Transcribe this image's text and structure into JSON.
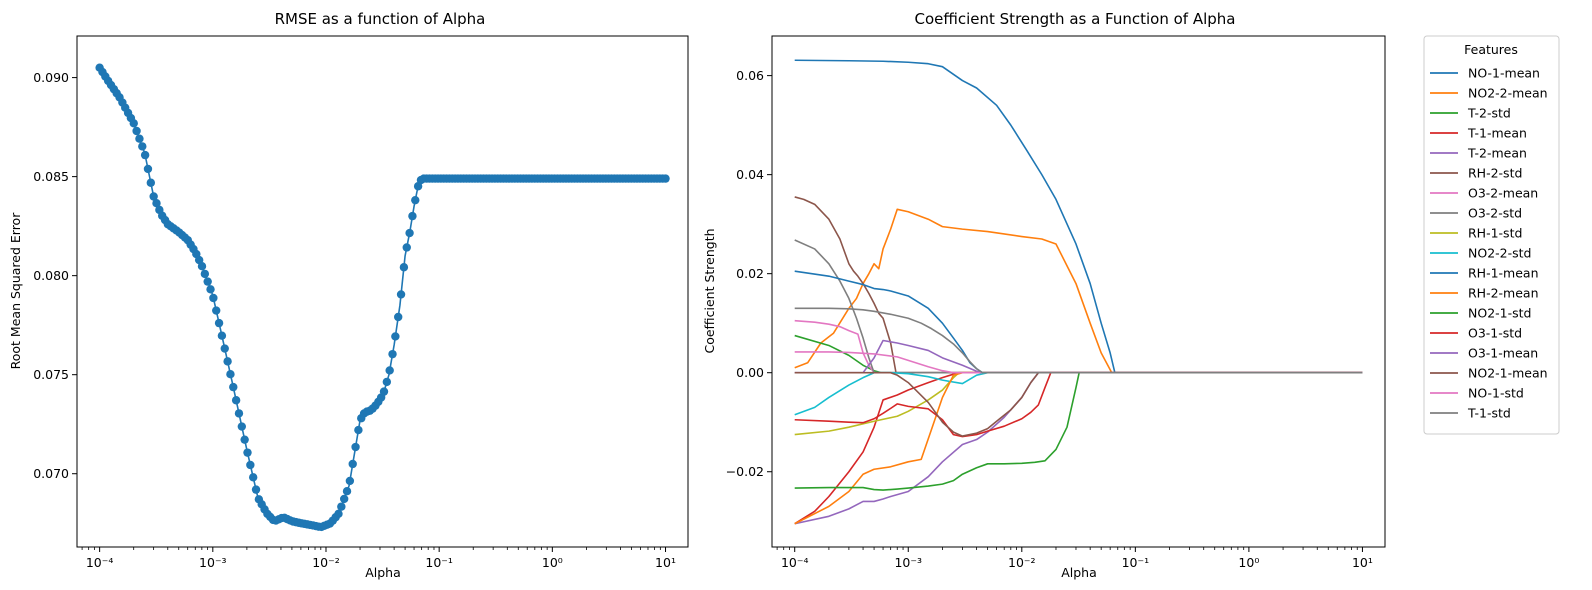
{
  "chart_data": [
    {
      "type": "line",
      "title": "RMSE as a function of Alpha",
      "xlabel": "Alpha",
      "ylabel": "Root Mean Squared Error",
      "xscale": "log",
      "xlim": [
        6.31e-05,
        15.8
      ],
      "ylim": [
        0.0663,
        0.0921
      ],
      "x_ticks": [
        "10⁻⁴",
        "10⁻³",
        "10⁻²",
        "10⁻¹",
        "10⁰",
        "10¹"
      ],
      "y_ticks": [
        "0.070",
        "0.075",
        "0.080",
        "0.085",
        "0.090"
      ],
      "y_tick_values": [
        0.07,
        0.075,
        0.08,
        0.085,
        0.09
      ],
      "grid": false,
      "marker": "circle",
      "color": "#1f77b4",
      "series": [
        {
          "x": [
            0.0001,
            0.00012,
            0.00015,
            0.0002,
            0.00025,
            0.0003,
            0.00035,
            0.0004,
            0.0005,
            0.0006,
            0.0007,
            0.0008,
            0.001,
            0.0012,
            0.0015,
            0.002,
            0.0025,
            0.003,
            0.0035,
            0.0042,
            0.005,
            0.006,
            0.0075,
            0.009,
            0.011,
            0.013,
            0.016,
            0.02,
            0.022,
            0.025,
            0.028,
            0.032,
            0.036,
            0.04,
            0.045,
            0.05,
            0.055,
            0.06,
            0.065,
            0.07,
            0.1,
            0.3,
            1,
            3,
            10
          ],
          "y": [
            0.0905,
            0.0898,
            0.089,
            0.0877,
            0.0862,
            0.084,
            0.0831,
            0.0826,
            0.0822,
            0.0818,
            0.0812,
            0.0805,
            0.079,
            0.077,
            0.0745,
            0.0712,
            0.0688,
            0.068,
            0.0676,
            0.0678,
            0.0676,
            0.0675,
            0.0674,
            0.0673,
            0.0675,
            0.068,
            0.0694,
            0.0727,
            0.0731,
            0.0732,
            0.0735,
            0.074,
            0.075,
            0.0765,
            0.0785,
            0.081,
            0.0822,
            0.0835,
            0.0845,
            0.0849,
            0.0849,
            0.0849,
            0.0849,
            0.0849,
            0.0849
          ]
        }
      ]
    },
    {
      "type": "line",
      "title": "Coefficient Strength as a Function of Alpha",
      "xlabel": "Alpha",
      "ylabel": "Coefficient Strength",
      "xscale": "log",
      "xlim": [
        6.31e-05,
        15.8
      ],
      "ylim": [
        -0.0352,
        0.068
      ],
      "x_ticks": [
        "10⁻⁴",
        "10⁻³",
        "10⁻²",
        "10⁻¹",
        "10⁰",
        "10¹"
      ],
      "y_ticks": [
        "−0.02",
        "0.00",
        "0.02",
        "0.04",
        "0.06"
      ],
      "y_tick_values": [
        -0.02,
        0.0,
        0.02,
        0.04,
        0.06
      ],
      "grid": false,
      "legend": {
        "title": "Features",
        "placement": "outside-right"
      },
      "series": [
        {
          "name": "NO-1-mean",
          "color": "#1f77b4",
          "x": [
            0.0001,
            0.0003,
            0.0006,
            0.001,
            0.0015,
            0.002,
            0.003,
            0.004,
            0.006,
            0.008,
            0.011,
            0.015,
            0.02,
            0.03,
            0.04,
            0.05,
            0.06,
            0.066,
            10
          ],
          "y": [
            0.0631,
            0.063,
            0.0629,
            0.0627,
            0.0624,
            0.0618,
            0.059,
            0.0575,
            0.054,
            0.05,
            0.045,
            0.04,
            0.035,
            0.026,
            0.018,
            0.01,
            0.004,
            0.0,
            0.0
          ]
        },
        {
          "name": "NO2-2-mean",
          "color": "#ff7f0e",
          "x": [
            0.0001,
            0.00013,
            0.00017,
            0.00022,
            0.0003,
            0.00035,
            0.0004,
            0.00045,
            0.0005,
            0.00055,
            0.0006,
            0.0007,
            0.0008,
            0.001,
            0.0015,
            0.002,
            0.003,
            0.005,
            0.01,
            0.015,
            0.02,
            0.03,
            0.04,
            0.05,
            0.062,
            10
          ],
          "y": [
            0.001,
            0.002,
            0.006,
            0.008,
            0.013,
            0.015,
            0.018,
            0.02,
            0.022,
            0.021,
            0.025,
            0.029,
            0.033,
            0.0325,
            0.031,
            0.0295,
            0.029,
            0.0285,
            0.0275,
            0.027,
            0.026,
            0.018,
            0.01,
            0.004,
            0.0,
            0.0
          ]
        },
        {
          "name": "T-2-std",
          "color": "#2ca02c",
          "x": [
            0.0001,
            0.0002,
            0.0003,
            0.0004,
            0.0005,
            0.00058,
            10
          ],
          "y": [
            0.0075,
            0.0055,
            0.0035,
            0.0015,
            0.0004,
            0.0,
            0.0
          ]
        },
        {
          "name": "T-1-mean",
          "color": "#d62728",
          "x": [
            0.0001,
            0.00015,
            0.0002,
            0.0003,
            0.0004,
            0.0005,
            0.0006,
            0.0008,
            0.001,
            0.0015,
            0.002,
            0.0025,
            0.0028,
            10
          ],
          "y": [
            -0.0305,
            -0.028,
            -0.025,
            -0.02,
            -0.016,
            -0.011,
            -0.0055,
            -0.0045,
            -0.0035,
            -0.002,
            -0.001,
            -0.0003,
            0.0,
            0.0
          ]
        },
        {
          "name": "T-2-mean",
          "color": "#9467bd",
          "x": [
            0.0001,
            0.0002,
            0.0003,
            0.0004,
            0.0005,
            0.0006,
            0.0007,
            0.001,
            0.0015,
            0.002,
            0.003,
            0.004,
            0.005,
            0.007,
            0.01,
            0.012,
            0.014,
            10
          ],
          "y": [
            -0.0305,
            -0.029,
            -0.0275,
            -0.026,
            -0.026,
            -0.0255,
            -0.025,
            -0.024,
            -0.021,
            -0.018,
            -0.0145,
            -0.0135,
            -0.012,
            -0.009,
            -0.005,
            -0.002,
            0.0,
            0.0
          ]
        },
        {
          "name": "RH-2-std",
          "color": "#8c564b",
          "x": [
            0.0001,
            0.00012,
            0.00015,
            0.0002,
            0.00025,
            0.0003,
            0.00033,
            0.00036,
            0.0004,
            0.00045,
            0.0005,
            0.00055,
            0.0006,
            0.0007,
            0.00078,
            10
          ],
          "y": [
            0.0355,
            0.035,
            0.034,
            0.031,
            0.027,
            0.022,
            0.0205,
            0.0195,
            0.018,
            0.016,
            0.014,
            0.012,
            0.011,
            0.006,
            0.0,
            0.0
          ]
        },
        {
          "name": "O3-2-mean",
          "color": "#e377c2",
          "x": [
            0.0001,
            0.00015,
            0.0002,
            0.00025,
            0.0003,
            0.00036,
            0.0004,
            0.00045,
            0.0005,
            10
          ],
          "y": [
            0.0105,
            0.0102,
            0.0098,
            0.0093,
            0.0085,
            0.0078,
            0.004,
            0.0015,
            0.0,
            0.0
          ]
        },
        {
          "name": "O3-2-std",
          "color": "#7f7f7f",
          "x": [
            0.0001,
            0.00015,
            0.0002,
            0.00025,
            0.0003,
            0.00035,
            0.0004,
            0.00045,
            0.0005,
            10
          ],
          "y": [
            0.0268,
            0.025,
            0.022,
            0.0185,
            0.015,
            0.011,
            0.007,
            0.003,
            0.0,
            0.0
          ]
        },
        {
          "name": "RH-1-std",
          "color": "#bcbd22",
          "x": [
            0.0001,
            0.0002,
            0.0003,
            0.0005,
            0.0008,
            0.001,
            0.0015,
            0.002,
            0.0025,
            0.0028,
            10
          ],
          "y": [
            -0.0125,
            -0.0118,
            -0.011,
            -0.0098,
            -0.0088,
            -0.0078,
            -0.0055,
            -0.0035,
            -0.001,
            0.0,
            0.0
          ]
        },
        {
          "name": "NO2-2-std",
          "color": "#17becf",
          "x": [
            0.0001,
            0.00015,
            0.0002,
            0.0003,
            0.0004,
            0.0005,
            0.0007,
            0.001,
            0.0015,
            0.002,
            0.003,
            0.004,
            0.005,
            10
          ],
          "y": [
            -0.0085,
            -0.007,
            -0.005,
            -0.0025,
            -0.001,
            0.0,
            0.0,
            -0.0002,
            -0.0008,
            -0.0015,
            -0.0022,
            -0.0005,
            0.0,
            0.0
          ]
        },
        {
          "name": "RH-1-mean",
          "color": "#1f77b4",
          "x": [
            0.0001,
            0.0002,
            0.0003,
            0.0004,
            0.0005,
            0.0006,
            0.0007,
            0.001,
            0.0015,
            0.002,
            0.0025,
            0.003,
            0.0035,
            0.004,
            0.0045,
            10
          ],
          "y": [
            0.0205,
            0.0195,
            0.0185,
            0.0178,
            0.017,
            0.0168,
            0.0165,
            0.0155,
            0.013,
            0.01,
            0.007,
            0.0045,
            0.002,
            0.0008,
            0.0,
            0.0
          ]
        },
        {
          "name": "RH-2-mean",
          "color": "#ff7f0e",
          "x": [
            0.0001,
            0.0002,
            0.0003,
            0.0004,
            0.0005,
            0.0007,
            0.001,
            0.0013,
            0.0016,
            0.002,
            0.0025,
            0.003,
            10
          ],
          "y": [
            -0.0305,
            -0.027,
            -0.024,
            -0.0205,
            -0.0195,
            -0.019,
            -0.018,
            -0.0175,
            -0.0115,
            -0.005,
            -0.0005,
            0.0,
            0.0
          ]
        },
        {
          "name": "NO2-1-std",
          "color": "#2ca02c",
          "x": [
            0.0001,
            0.0002,
            0.0003,
            0.0004,
            0.0005,
            0.0006,
            0.0008,
            0.001,
            0.0015,
            0.002,
            0.0025,
            0.003,
            0.004,
            0.005,
            0.007,
            0.01,
            0.013,
            0.016,
            0.02,
            0.025,
            0.03,
            0.032,
            10
          ],
          "y": [
            -0.0233,
            -0.0232,
            -0.0232,
            -0.0232,
            -0.0236,
            -0.0237,
            -0.0235,
            -0.0233,
            -0.0229,
            -0.0225,
            -0.0218,
            -0.0205,
            -0.0192,
            -0.0184,
            -0.0184,
            -0.0183,
            -0.0181,
            -0.0178,
            -0.0155,
            -0.011,
            -0.003,
            0.0,
            0.0
          ]
        },
        {
          "name": "O3-1-std",
          "color": "#d62728",
          "x": [
            0.0001,
            0.0002,
            0.0003,
            0.0004,
            0.0005,
            0.0006,
            0.0007,
            0.0008,
            0.001,
            0.0015,
            0.002,
            0.0025,
            0.003,
            0.004,
            0.005,
            0.007,
            0.01,
            0.012,
            0.014,
            0.016,
            0.018,
            10
          ],
          "y": [
            -0.0095,
            -0.0098,
            -0.01,
            -0.0101,
            -0.0093,
            -0.0082,
            -0.0072,
            -0.0063,
            -0.0068,
            -0.0073,
            -0.0095,
            -0.0125,
            -0.0129,
            -0.0125,
            -0.0118,
            -0.0108,
            -0.0093,
            -0.008,
            -0.0065,
            -0.003,
            0.0,
            0.0
          ]
        },
        {
          "name": "O3-1-mean",
          "color": "#9467bd",
          "x": [
            0.0001,
            0.0003,
            0.0004,
            0.0005,
            0.0006,
            0.0008,
            0.001,
            0.0015,
            0.002,
            0.003,
            0.004,
            0.0045,
            10
          ],
          "y": [
            0.0,
            0.0,
            0.0,
            0.003,
            0.0065,
            0.006,
            0.0055,
            0.0045,
            0.003,
            0.0015,
            0.0003,
            0.0,
            0.0
          ]
        },
        {
          "name": "NO2-1-mean",
          "color": "#8c564b",
          "x": [
            0.0001,
            0.0007,
            0.0008,
            0.001,
            0.0015,
            0.002,
            0.0025,
            0.0028,
            0.003,
            0.004,
            0.005,
            0.006,
            0.008,
            0.01,
            0.012,
            0.014,
            10
          ],
          "y": [
            0.0,
            0.0,
            -0.0005,
            -0.002,
            -0.006,
            -0.01,
            -0.012,
            -0.0125,
            -0.0128,
            -0.0122,
            -0.0113,
            -0.0098,
            -0.0075,
            -0.005,
            -0.002,
            0.0,
            0.0
          ]
        },
        {
          "name": "NO-1-std",
          "color": "#e377c2",
          "x": [
            0.0001,
            0.0002,
            0.0003,
            0.0005,
            0.0008,
            0.001,
            0.0015,
            0.002,
            0.0025,
            10
          ],
          "y": [
            0.0042,
            0.0042,
            0.0041,
            0.0038,
            0.0032,
            0.0025,
            0.0012,
            0.0004,
            0.0,
            0.0
          ]
        },
        {
          "name": "T-1-std",
          "color": "#7f7f7f",
          "x": [
            0.0001,
            0.0002,
            0.0003,
            0.0004,
            0.0005,
            0.0007,
            0.001,
            0.0013,
            0.0016,
            0.002,
            0.0025,
            0.003,
            0.0035,
            0.004,
            0.0045,
            10
          ],
          "y": [
            0.013,
            0.013,
            0.0129,
            0.0127,
            0.0124,
            0.0118,
            0.011,
            0.01,
            0.0089,
            0.0075,
            0.0058,
            0.004,
            0.0022,
            0.0008,
            0.0,
            0.0
          ]
        }
      ]
    }
  ]
}
